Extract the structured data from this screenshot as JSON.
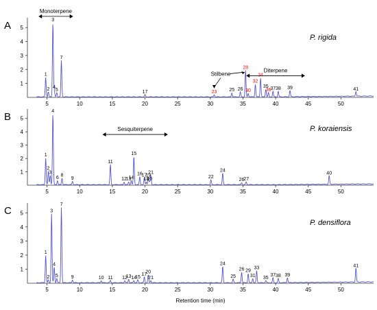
{
  "chart_data": [
    {
      "type": "line",
      "panel_letter": "A",
      "species": "P. rigida",
      "xlim": [
        2,
        55
      ],
      "ylim": [
        0,
        5.5
      ],
      "y_ticks": [
        "1",
        "2",
        "3",
        "4",
        "5"
      ],
      "annotations": [
        {
          "text": "Monoterpene",
          "x_from": 3.7,
          "x_to": 9,
          "y": 5.8
        },
        {
          "text": "Stilbene",
          "x": 31.6,
          "y": 1.55
        },
        {
          "text": "Diterpene",
          "x_from": 35.5,
          "x_to": 44.5,
          "y": 1.55
        }
      ],
      "peaks": [
        {
          "label": "1",
          "x": 4.8,
          "y": 1.4,
          "color": "#000000"
        },
        {
          "label": "2",
          "x": 5.2,
          "y": 0.35,
          "color": "#000000"
        },
        {
          "label": "3",
          "x": 5.9,
          "y": 5.3,
          "color": "#000000"
        },
        {
          "label": "4",
          "x": 6.1,
          "y": 0.5,
          "color": "#000000"
        },
        {
          "label": "5",
          "x": 6.5,
          "y": 0.3,
          "color": "#000000"
        },
        {
          "label": "7",
          "x": 7.2,
          "y": 2.6,
          "color": "#000000"
        },
        {
          "label": "17",
          "x": 20.0,
          "y": 0.15,
          "color": "#000000"
        },
        {
          "label": "23",
          "x": 30.6,
          "y": 0.15,
          "color": "#ff0000"
        },
        {
          "label": "25",
          "x": 33.3,
          "y": 0.3,
          "color": "#000000"
        },
        {
          "label": "26",
          "x": 34.6,
          "y": 0.35,
          "color": "#000000"
        },
        {
          "label": "28",
          "x": 35.4,
          "y": 1.9,
          "color": "#ff0000"
        },
        {
          "label": "30",
          "x": 35.8,
          "y": 0.25,
          "color": "#ff0000"
        },
        {
          "label": "32",
          "x": 36.9,
          "y": 0.9,
          "color": "#ff0000"
        },
        {
          "label": "34",
          "x": 37.7,
          "y": 1.35,
          "color": "#ff0000"
        },
        {
          "label": "35",
          "x": 38.5,
          "y": 0.55,
          "color": "#000000"
        },
        {
          "label": "36",
          "x": 38.9,
          "y": 0.3,
          "color": "#ff0000"
        },
        {
          "label": "37",
          "x": 39.6,
          "y": 0.4,
          "color": "#000000"
        },
        {
          "label": "38",
          "x": 40.4,
          "y": 0.4,
          "color": "#000000"
        },
        {
          "label": "39",
          "x": 42.2,
          "y": 0.45,
          "color": "#000000"
        },
        {
          "label": "41",
          "x": 52.3,
          "y": 0.35,
          "color": "#000000"
        }
      ]
    },
    {
      "type": "line",
      "panel_letter": "B",
      "species": "P. koraiensis",
      "xlim": [
        2,
        55
      ],
      "ylim": [
        0,
        5.5
      ],
      "y_ticks": [
        "1",
        "2",
        "3",
        "4",
        "5"
      ],
      "annotations": [
        {
          "text": "Sesquiterpene",
          "x_from": 13.5,
          "x_to": 23.5,
          "y": 3.8
        }
      ],
      "peaks": [
        {
          "label": "1",
          "x": 4.8,
          "y": 2.0,
          "color": "#000000"
        },
        {
          "label": "2",
          "x": 5.2,
          "y": 1.0,
          "color": "#000000"
        },
        {
          "label": "3",
          "x": 5.5,
          "y": 0.7,
          "color": "#000000"
        },
        {
          "label": "4",
          "x": 5.9,
          "y": 5.3,
          "color": "#000000"
        },
        {
          "label": "6",
          "x": 6.6,
          "y": 0.3,
          "color": "#000000"
        },
        {
          "label": "8",
          "x": 7.3,
          "y": 0.5,
          "color": "#000000"
        },
        {
          "label": "9",
          "x": 8.9,
          "y": 0.25,
          "color": "#000000"
        },
        {
          "label": "11",
          "x": 14.7,
          "y": 1.5,
          "color": "#000000"
        },
        {
          "label": "12",
          "x": 16.8,
          "y": 0.2,
          "color": "#000000"
        },
        {
          "label": "13",
          "x": 17.5,
          "y": 0.2,
          "color": "#000000"
        },
        {
          "label": "14",
          "x": 17.9,
          "y": 0.3,
          "color": "#000000"
        },
        {
          "label": "15",
          "x": 18.3,
          "y": 2.1,
          "color": "#000000"
        },
        {
          "label": "16",
          "x": 19.2,
          "y": 0.6,
          "color": "#000000"
        },
        {
          "label": "17",
          "x": 19.9,
          "y": 0.5,
          "color": "#000000"
        },
        {
          "label": "18",
          "x": 20.2,
          "y": 0.2,
          "color": "#000000"
        },
        {
          "label": "19",
          "x": 20.5,
          "y": 0.5,
          "color": "#000000"
        },
        {
          "label": "20",
          "x": 20.7,
          "y": 0.2,
          "color": "#000000"
        },
        {
          "label": "21",
          "x": 20.9,
          "y": 0.7,
          "color": "#000000"
        },
        {
          "label": "22",
          "x": 30.1,
          "y": 0.35,
          "color": "#000000"
        },
        {
          "label": "24",
          "x": 31.9,
          "y": 0.85,
          "color": "#000000"
        },
        {
          "label": "26",
          "x": 34.8,
          "y": 0.15,
          "color": "#000000"
        },
        {
          "label": "27",
          "x": 35.5,
          "y": 0.2,
          "color": "#000000"
        },
        {
          "label": "40",
          "x": 48.2,
          "y": 0.65,
          "color": "#000000"
        }
      ]
    },
    {
      "type": "line",
      "panel_letter": "C",
      "species": "P. densiflora",
      "xlim": [
        2,
        55
      ],
      "ylim": [
        0,
        5.5
      ],
      "y_ticks": [
        "1",
        "2",
        "3",
        "4",
        "5"
      ],
      "annotations": [],
      "peaks": [
        {
          "label": "1",
          "x": 4.8,
          "y": 1.95,
          "color": "#000000"
        },
        {
          "label": "2",
          "x": 5.2,
          "y": 0.2,
          "color": "#000000"
        },
        {
          "label": "3",
          "x": 5.7,
          "y": 4.9,
          "color": "#000000"
        },
        {
          "label": "4",
          "x": 6.1,
          "y": 1.1,
          "color": "#000000"
        },
        {
          "label": "5",
          "x": 6.5,
          "y": 0.3,
          "color": "#000000"
        },
        {
          "label": "7",
          "x": 7.2,
          "y": 5.35,
          "color": "#000000"
        },
        {
          "label": "9",
          "x": 8.9,
          "y": 0.2,
          "color": "#000000"
        },
        {
          "label": "10",
          "x": 13.3,
          "y": 0.15,
          "color": "#000000"
        },
        {
          "label": "11",
          "x": 14.7,
          "y": 0.15,
          "color": "#000000"
        },
        {
          "label": "12",
          "x": 16.9,
          "y": 0.15,
          "color": "#000000"
        },
        {
          "label": "13",
          "x": 17.5,
          "y": 0.25,
          "color": "#000000"
        },
        {
          "label": "14",
          "x": 18.3,
          "y": 0.15,
          "color": "#000000"
        },
        {
          "label": "15",
          "x": 18.9,
          "y": 0.2,
          "color": "#000000"
        },
        {
          "label": "17",
          "x": 19.9,
          "y": 0.4,
          "color": "#000000"
        },
        {
          "label": "20",
          "x": 20.5,
          "y": 0.55,
          "color": "#000000"
        },
        {
          "label": "21",
          "x": 20.9,
          "y": 0.15,
          "color": "#000000"
        },
        {
          "label": "24",
          "x": 31.9,
          "y": 1.15,
          "color": "#000000"
        },
        {
          "label": "25",
          "x": 33.5,
          "y": 0.25,
          "color": "#000000"
        },
        {
          "label": "26",
          "x": 34.8,
          "y": 0.75,
          "color": "#000000"
        },
        {
          "label": "29",
          "x": 35.8,
          "y": 0.65,
          "color": "#000000"
        },
        {
          "label": "31",
          "x": 36.5,
          "y": 0.3,
          "color": "#000000"
        },
        {
          "label": "33",
          "x": 37.1,
          "y": 0.85,
          "color": "#000000"
        },
        {
          "label": "35",
          "x": 38.5,
          "y": 0.15,
          "color": "#000000"
        },
        {
          "label": "37",
          "x": 39.6,
          "y": 0.35,
          "color": "#000000"
        },
        {
          "label": "38",
          "x": 40.4,
          "y": 0.3,
          "color": "#000000"
        },
        {
          "label": "39",
          "x": 41.8,
          "y": 0.35,
          "color": "#000000"
        },
        {
          "label": "41",
          "x": 52.3,
          "y": 1.0,
          "color": "#000000"
        }
      ]
    }
  ],
  "x_axis": {
    "label": "Retention time (min)",
    "ticks": [
      5,
      10,
      15,
      20,
      25,
      30,
      35,
      40,
      45,
      50
    ],
    "range": [
      2,
      55
    ]
  },
  "colors": {
    "trace": "#5555cc",
    "highlight_peak_label": "#ff0000",
    "text": "#000000",
    "axis": "#333333"
  }
}
